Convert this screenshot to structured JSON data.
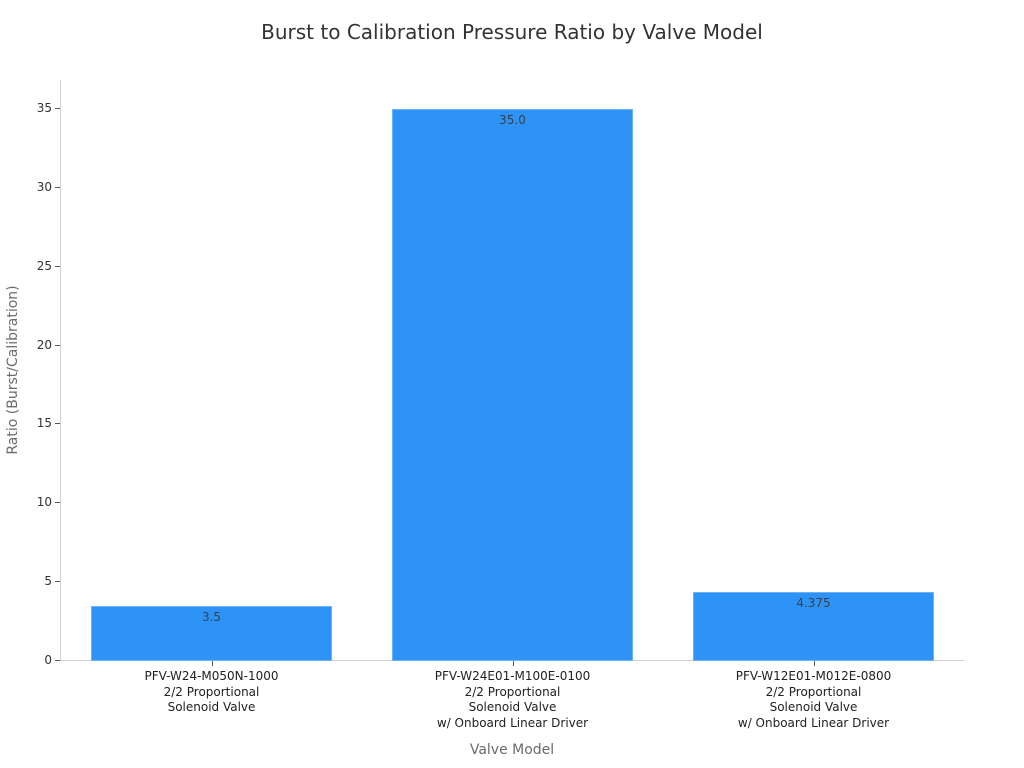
{
  "chart_data": {
    "type": "bar",
    "title": "Burst to Calibration Pressure Ratio by Valve Model",
    "xlabel": "Valve Model",
    "ylabel": "Ratio (Burst/Calibration)",
    "ylim": [
      0,
      36.8
    ],
    "yticks": [
      0,
      5,
      10,
      15,
      20,
      25,
      30,
      35
    ],
    "grid": false,
    "legend": null,
    "bar_color": "#2e93f7",
    "categories": [
      [
        "PFV-W24-M050N-1000",
        "2/2 Proportional",
        "Solenoid Valve"
      ],
      [
        "PFV-W24E01-M100E-0100",
        "2/2 Proportional",
        "Solenoid Valve",
        "w/ Onboard Linear Driver"
      ],
      [
        "PFV-W12E01-M012E-0800",
        "2/2 Proportional",
        "Solenoid Valve",
        "w/ Onboard Linear Driver"
      ]
    ],
    "values": [
      3.5,
      35.0,
      4.375
    ],
    "value_labels": [
      "3.5",
      "35.0",
      "4.375"
    ]
  }
}
